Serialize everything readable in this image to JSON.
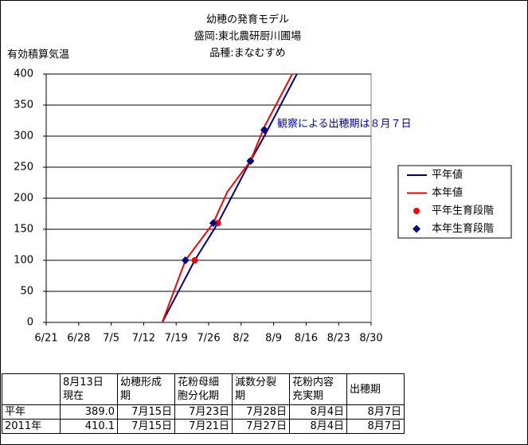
{
  "chart_data": {
    "type": "line",
    "title": [
      "幼穂の発育モデル",
      "盛岡:東北農研厨川圃場",
      "品種:まなむすめ"
    ],
    "y_label": "有効積算気温",
    "xlim": [
      "6/21",
      "8/30"
    ],
    "xticks": [
      "6/21",
      "6/28",
      "7/5",
      "7/12",
      "7/19",
      "7/26",
      "8/2",
      "8/9",
      "8/16",
      "8/23",
      "8/30"
    ],
    "ylim": [
      0,
      400
    ],
    "yticks": [
      0,
      50,
      100,
      150,
      200,
      250,
      300,
      350,
      400
    ],
    "grid": true,
    "series": [
      {
        "name": "平年値",
        "color": "#000080",
        "kind": "line",
        "x": [
          "7/16",
          "7/23",
          "7/28",
          "8/4",
          "8/7",
          "8/14"
        ],
        "values": [
          0,
          100,
          160,
          260,
          300,
          400
        ]
      },
      {
        "name": "本年値",
        "color": "#ff0000",
        "kind": "line",
        "x": [
          "7/16",
          "7/21",
          "7/27",
          "7/30",
          "8/4",
          "8/7",
          "8/13"
        ],
        "values": [
          0,
          100,
          160,
          210,
          260,
          315,
          400
        ]
      },
      {
        "name": "平年生育段階",
        "color": "#ff0000",
        "kind": "circle",
        "x": [
          "7/23",
          "7/28",
          "8/4",
          "8/7"
        ],
        "values": [
          100,
          160,
          260,
          310
        ]
      },
      {
        "name": "本年生育段階",
        "color": "#000080",
        "kind": "diamond",
        "x": [
          "7/21",
          "7/27",
          "8/4",
          "8/7"
        ],
        "values": [
          100,
          160,
          260,
          310
        ]
      }
    ],
    "annotation": "観察による出穂期は８月７日"
  },
  "table": {
    "header": [
      [
        "8月13日",
        "現在"
      ],
      [
        "幼穂形成",
        "期"
      ],
      [
        "花粉母細",
        "胞分化期"
      ],
      [
        "減数分裂",
        "期"
      ],
      [
        "花粉内容",
        "充実期"
      ],
      [
        "出穂期"
      ]
    ],
    "rows": [
      [
        "平年",
        "389.0",
        "7月15日",
        "7月23日",
        "7月28日",
        "8月4日",
        "8月7日"
      ],
      [
        "2011年",
        "410.1",
        "7月15日",
        "7月21日",
        "7月27日",
        "8月4日",
        "8月7日"
      ]
    ]
  }
}
